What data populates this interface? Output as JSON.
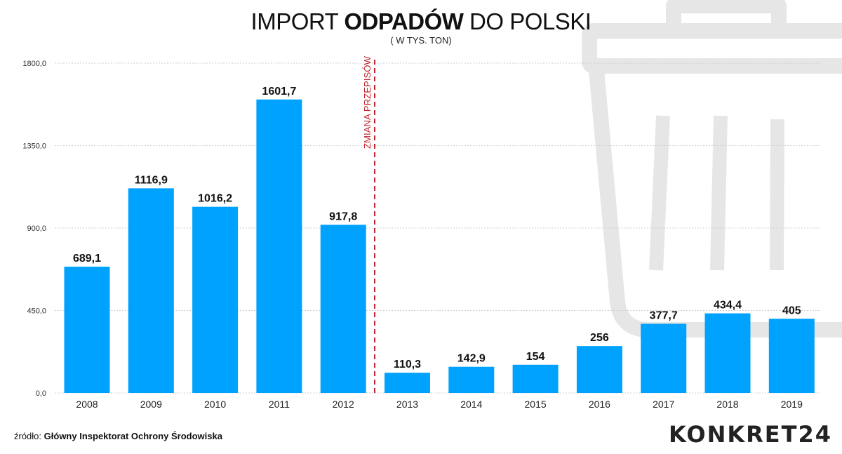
{
  "chart_data": {
    "type": "bar",
    "title_parts": [
      "IMPORT ",
      "ODPADÓW",
      " DO POLSKI"
    ],
    "subtitle": "( W TYS. TON)",
    "categories": [
      "2008",
      "2009",
      "2010",
      "2011",
      "2012",
      "2013",
      "2014",
      "2015",
      "2016",
      "2017",
      "2018",
      "2019"
    ],
    "values": [
      689.1,
      1116.9,
      1016.2,
      1601.7,
      917.8,
      110.3,
      142.9,
      154,
      256,
      377.7,
      434.4,
      405
    ],
    "value_labels": [
      "689,1",
      "1116,9",
      "1016,2",
      "1601,7",
      "917,8",
      "110,3",
      "142,9",
      "154",
      "256",
      "377,7",
      "434,4",
      "405"
    ],
    "ylim": [
      0,
      1800
    ],
    "yticks": [
      0,
      450,
      900,
      1350,
      1800
    ],
    "ytick_labels": [
      "0,0",
      "450,0",
      "900,0",
      "1350,0",
      "1800,0"
    ],
    "grid": true,
    "annotation": {
      "text": "ZMIANA PRZEPISÓW",
      "between": [
        "2012",
        "2013"
      ]
    },
    "colors": {
      "bar": "#00a2ff",
      "annotation": "#c0272d",
      "watermark": "#e6e6e6"
    }
  },
  "source_label": "źródło:",
  "source_value": "Główny Inspektorat Ochrony Środowiska",
  "logo": "KONKRET24"
}
